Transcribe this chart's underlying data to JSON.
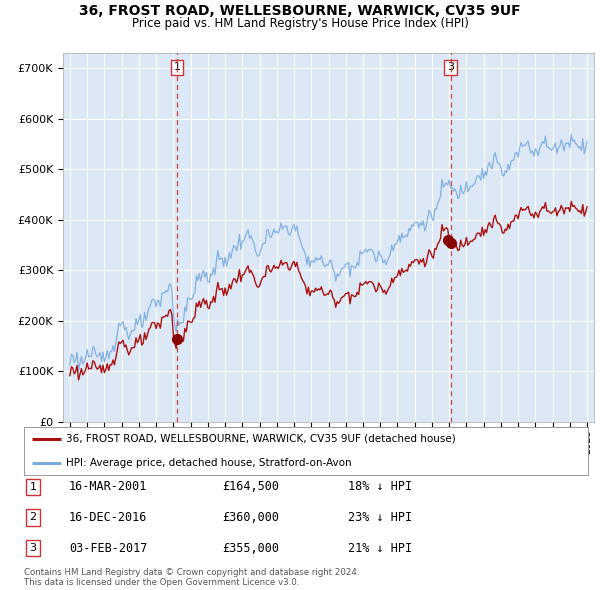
{
  "title": "36, FROST ROAD, WELLESBOURNE, WARWICK, CV35 9UF",
  "subtitle": "Price paid vs. HM Land Registry's House Price Index (HPI)",
  "ylim": [
    0,
    730000
  ],
  "yticks": [
    0,
    100000,
    200000,
    300000,
    400000,
    500000,
    600000,
    700000
  ],
  "ytick_labels": [
    "£0",
    "£100K",
    "£200K",
    "£300K",
    "£400K",
    "£500K",
    "£600K",
    "£700K"
  ],
  "hpi_color": "#7aabe0",
  "price_color": "#aa1111",
  "vline_color": "#cc3333",
  "sale1_date": 2001.21,
  "sale1_price": 164500,
  "sale2_date": 2016.96,
  "sale2_price": 360000,
  "sale3_date": 2017.09,
  "sale3_price": 355000,
  "legend_price_label": "36, FROST ROAD, WELLESBOURNE, WARWICK, CV35 9UF (detached house)",
  "legend_hpi_label": "HPI: Average price, detached house, Stratford-on-Avon",
  "table_rows": [
    {
      "num": "1",
      "date": "16-MAR-2001",
      "price": "£164,500",
      "note": "18% ↓ HPI"
    },
    {
      "num": "2",
      "date": "16-DEC-2016",
      "price": "£360,000",
      "note": "23% ↓ HPI"
    },
    {
      "num": "3",
      "date": "03-FEB-2017",
      "price": "£355,000",
      "note": "21% ↓ HPI"
    }
  ],
  "footer": "Contains HM Land Registry data © Crown copyright and database right 2024.\nThis data is licensed under the Open Government Licence v3.0.",
  "plot_bg": "#dce8f5",
  "fig_bg": "#ffffff",
  "grid_color": "#ffffff"
}
